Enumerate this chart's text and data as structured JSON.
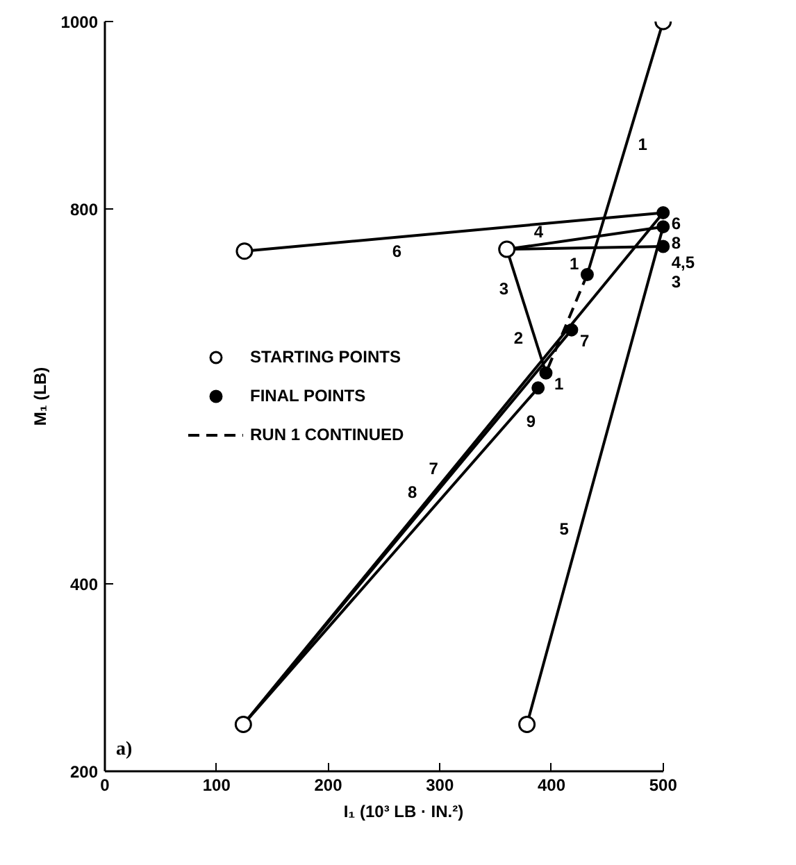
{
  "chart_data": {
    "type": "line",
    "xlabel": "I₁ (10³ LB · IN.²)",
    "ylabel": "M₁ (LB)",
    "xlim": [
      0,
      500
    ],
    "ylim": [
      200,
      1000
    ],
    "xticks": [
      0,
      100,
      200,
      300,
      400,
      500
    ],
    "yticks": [
      200,
      400,
      800,
      1000
    ],
    "legend": "left",
    "series": [
      {
        "color": "#000000",
        "x": [
          500,
          432
        ],
        "values": [
          1000,
          730
        ]
      },
      {
        "color": "#000000",
        "x": [
          360,
          395
        ],
        "values": [
          757,
          625
        ]
      },
      {
        "color": "#000000",
        "x": [
          360,
          500
        ],
        "values": [
          757,
          760
        ]
      },
      {
        "color": "#000000",
        "x": [
          360,
          500
        ],
        "values": [
          757,
          781
        ]
      },
      {
        "color": "#000000",
        "x": [
          378,
          500
        ],
        "values": [
          250,
          781
        ]
      },
      {
        "color": "#000000",
        "x": [
          125,
          500
        ],
        "values": [
          755,
          796
        ]
      },
      {
        "color": "#000000",
        "x": [
          124,
          418
        ],
        "values": [
          250,
          671
        ]
      },
      {
        "color": "#000000",
        "x": [
          124,
          500
        ],
        "values": [
          250,
          796
        ]
      },
      {
        "color": "#000000",
        "x": [
          124,
          388
        ],
        "values": [
          250,
          609
        ]
      },
      {
        "name": "RUN 1 CONTINUED",
        "color": "#000000",
        "line_style": "dashed",
        "x": [
          432,
          395
        ],
        "values": [
          730,
          625
        ]
      },
      {
        "name": "STARTING POINTS",
        "type": "scatter",
        "marker": "circle",
        "color": "#ffffff",
        "x": [
          500,
          360,
          125,
          124,
          378
        ],
        "values": [
          1000,
          757,
          755,
          250,
          250
        ]
      },
      {
        "name": "FINAL POINTS",
        "type": "scatter",
        "marker": "circle",
        "color": "#000000",
        "x": [
          432,
          395,
          500,
          500,
          500,
          418,
          388
        ],
        "values": [
          730,
          625,
          760,
          781,
          796,
          671,
          609
        ]
      }
    ],
    "annotations": [
      {
        "text": "1",
        "x": 470,
        "y": 881
      },
      {
        "text": "1",
        "x": 432,
        "y": 730
      },
      {
        "text": "1",
        "x": 395,
        "y": 625
      },
      {
        "text": "2",
        "x": 382,
        "y": 674
      },
      {
        "text": "3",
        "x": 369,
        "y": 727
      },
      {
        "text": "3",
        "x": 500,
        "y": 760
      },
      {
        "text": "4",
        "x": 400,
        "y": 764
      },
      {
        "text": "4,5",
        "x": 500,
        "y": 781
      },
      {
        "text": "6",
        "x": 250,
        "y": 767
      },
      {
        "text": "6",
        "x": 500,
        "y": 796
      },
      {
        "text": "7",
        "x": 418,
        "y": 671
      },
      {
        "text": "7",
        "x": 306,
        "y": 511
      },
      {
        "text": "8",
        "x": 500,
        "y": 796
      },
      {
        "text": "8",
        "x": 287,
        "y": 486
      },
      {
        "text": "9",
        "x": 370,
        "y": 585
      },
      {
        "text": "5",
        "x": 423,
        "y": 447
      },
      "a)"
    ]
  }
}
